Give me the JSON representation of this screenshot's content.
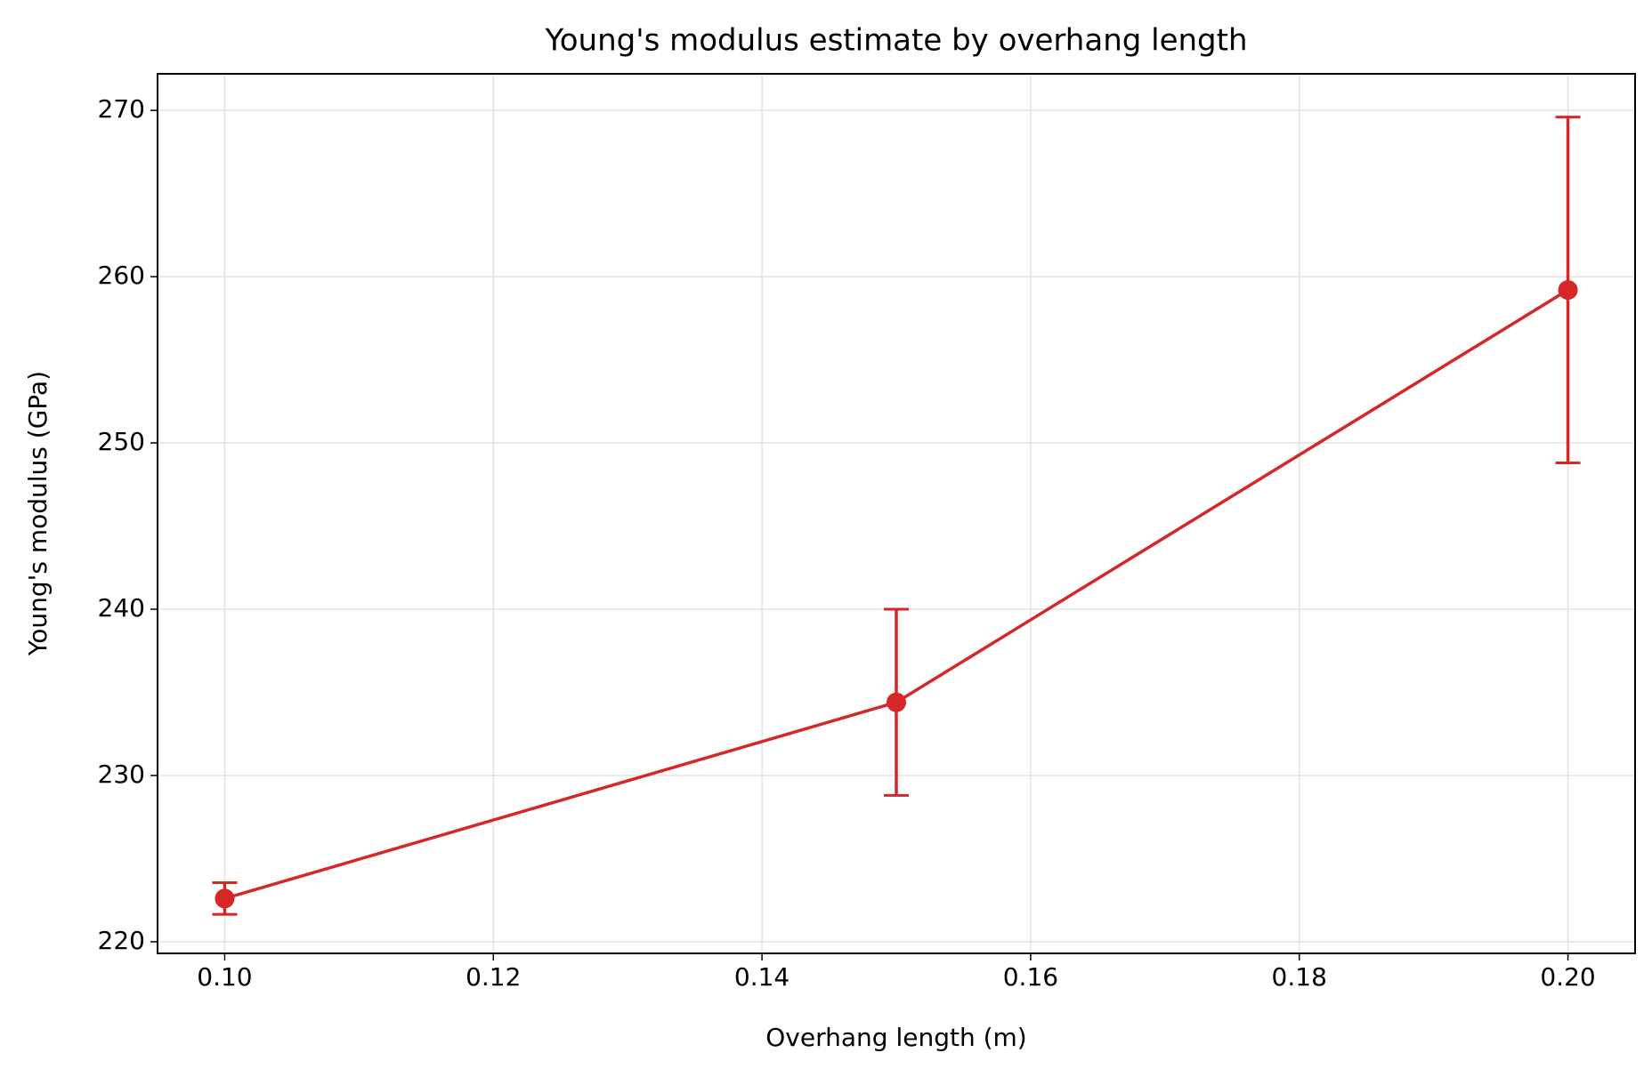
{
  "chart_data": {
    "type": "line",
    "title": "Young's modulus estimate by overhang length",
    "x_label": "Overhang length (m)",
    "y_label": "Young's modulus (GPa)",
    "x": [
      0.1,
      0.15,
      0.2
    ],
    "values": [
      222.6,
      234.4,
      259.2
    ],
    "errors": [
      0.95,
      5.6,
      10.4
    ],
    "color": "#d62728",
    "xlim": [
      0.095,
      0.205
    ],
    "xticks": [
      {
        "value": 0.1,
        "label": "0.10"
      },
      0.12,
      0.14,
      0.16,
      0.18,
      {
        "value": 0.2,
        "label": "0.20"
      }
    ],
    "ylim": [
      219.3,
      272.2
    ],
    "yticks": [
      220,
      230,
      240,
      250,
      260,
      270
    ],
    "grid": true
  }
}
